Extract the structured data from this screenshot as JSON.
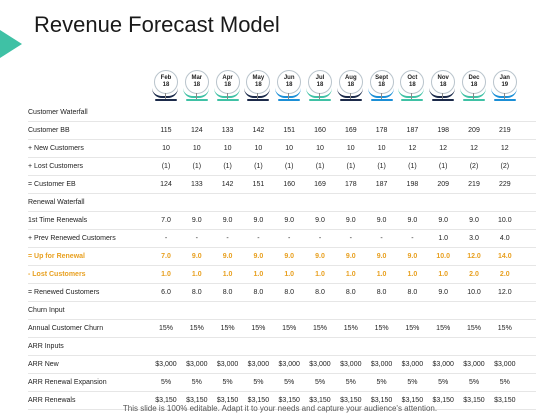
{
  "title": "Revenue Forecast Model",
  "months": [
    {
      "m": "Feb",
      "y": "18",
      "color": "#1b2a4a"
    },
    {
      "m": "Mar",
      "y": "18",
      "color": "#3fc1a5"
    },
    {
      "m": "Apr",
      "y": "18",
      "color": "#3fc1a5"
    },
    {
      "m": "May",
      "y": "18",
      "color": "#1b2a4a"
    },
    {
      "m": "Jun",
      "y": "18",
      "color": "#1b8fd6"
    },
    {
      "m": "Jul",
      "y": "18",
      "color": "#3fc1a5"
    },
    {
      "m": "Aug",
      "y": "18",
      "color": "#1b2a4a"
    },
    {
      "m": "Sept",
      "y": "18",
      "color": "#1b8fd6"
    },
    {
      "m": "Oct",
      "y": "18",
      "color": "#3fc1a5"
    },
    {
      "m": "Nov",
      "y": "18",
      "color": "#1b2a4a"
    },
    {
      "m": "Dec",
      "y": "18",
      "color": "#3fc1a5"
    },
    {
      "m": "Jan",
      "y": "19",
      "color": "#1b8fd6"
    }
  ],
  "rows": [
    {
      "label": "Customer Waterfall",
      "values": []
    },
    {
      "label": "Customer BB",
      "values": [
        "115",
        "124",
        "133",
        "142",
        "151",
        "160",
        "169",
        "178",
        "187",
        "198",
        "209",
        "219"
      ]
    },
    {
      "label": "+ New Customers",
      "values": [
        "10",
        "10",
        "10",
        "10",
        "10",
        "10",
        "10",
        "10",
        "12",
        "12",
        "12",
        "12"
      ]
    },
    {
      "label": "+ Lost Customers",
      "values": [
        "(1)",
        "(1)",
        "(1)",
        "(1)",
        "(1)",
        "(1)",
        "(1)",
        "(1)",
        "(1)",
        "(1)",
        "(2)",
        "(2)"
      ]
    },
    {
      "label": "= Customer EB",
      "values": [
        "124",
        "133",
        "142",
        "151",
        "160",
        "169",
        "178",
        "187",
        "198",
        "209",
        "219",
        "229"
      ]
    },
    {
      "label": "Renewal Waterfall",
      "values": []
    },
    {
      "label": "1st Time Renewals",
      "values": [
        "7.0",
        "9.0",
        "9.0",
        "9.0",
        "9.0",
        "9.0",
        "9.0",
        "9.0",
        "9.0",
        "9.0",
        "9.0",
        "10.0"
      ]
    },
    {
      "label": "+ Prev Renewed Customers",
      "values": [
        "-",
        "-",
        "-",
        "-",
        "-",
        "-",
        "-",
        "-",
        "-",
        "1.0",
        "3.0",
        "4.0"
      ]
    },
    {
      "label": "= Up for Renewal",
      "highlight": true,
      "values": [
        "7.0",
        "9.0",
        "9.0",
        "9.0",
        "9.0",
        "9.0",
        "9.0",
        "9.0",
        "9.0",
        "10.0",
        "12.0",
        "14.0"
      ]
    },
    {
      "label": "- Lost Customers",
      "highlight": true,
      "values": [
        "1.0",
        "1.0",
        "1.0",
        "1.0",
        "1.0",
        "1.0",
        "1.0",
        "1.0",
        "1.0",
        "1.0",
        "2.0",
        "2.0"
      ]
    },
    {
      "label": "= Renewed Customers",
      "values": [
        "6.0",
        "8.0",
        "8.0",
        "8.0",
        "8.0",
        "8.0",
        "8.0",
        "8.0",
        "8.0",
        "9.0",
        "10.0",
        "12.0"
      ]
    },
    {
      "label": "Churn Input",
      "values": []
    },
    {
      "label": "Annual Customer Churn",
      "values": [
        "15%",
        "15%",
        "15%",
        "15%",
        "15%",
        "15%",
        "15%",
        "15%",
        "15%",
        "15%",
        "15%",
        "15%"
      ]
    },
    {
      "label": "ARR Inputs",
      "values": []
    },
    {
      "label": "ARR New",
      "values": [
        "$3,000",
        "$3,000",
        "$3,000",
        "$3,000",
        "$3,000",
        "$3,000",
        "$3,000",
        "$3,000",
        "$3,000",
        "$3,000",
        "$3,000",
        "$3,000"
      ]
    },
    {
      "label": "ARR Renewal Expansion",
      "values": [
        "5%",
        "5%",
        "5%",
        "5%",
        "5%",
        "5%",
        "5%",
        "5%",
        "5%",
        "5%",
        "5%",
        "5%"
      ]
    },
    {
      "label": "ARR Renewals",
      "values": [
        "$3,150",
        "$3,150",
        "$3,150",
        "$3,150",
        "$3,150",
        "$3,150",
        "$3,150",
        "$3,150",
        "$3,150",
        "$3,150",
        "$3,150",
        "$3,150"
      ]
    }
  ],
  "footer": "This slide is 100% editable. Adapt it to your needs and capture your audience's attention."
}
